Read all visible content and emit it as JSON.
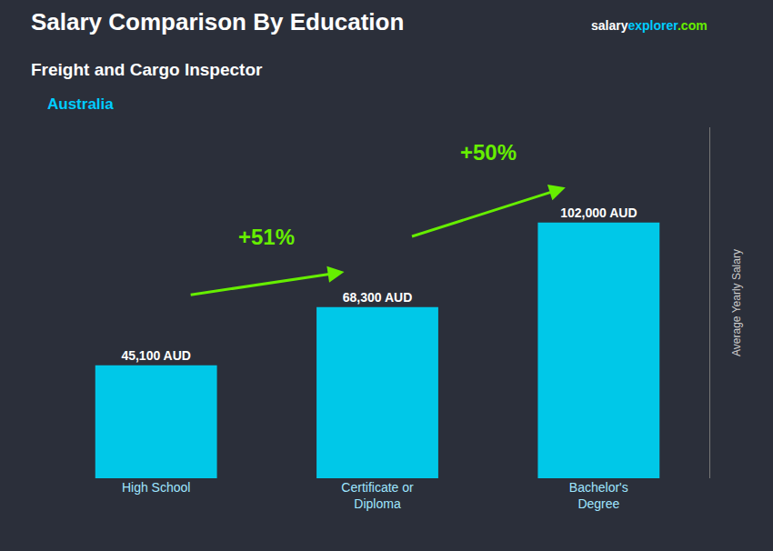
{
  "chart_data": {
    "type": "bar",
    "title": "Salary Comparison By Education",
    "subtitle": "Freight and Cargo Inspector",
    "ylabel": "Average Yearly Salary",
    "categories": [
      "High School",
      "Certificate or\nDiploma",
      "Bachelor's\nDegree"
    ],
    "values": [
      45100,
      68300,
      102000
    ],
    "value_labels": [
      "45,100 AUD",
      "68,300 AUD",
      "102,000 AUD"
    ],
    "data_labels": true,
    "color": "#00c8e8",
    "ylim": [
      0,
      140000
    ],
    "tick_labels": "x",
    "grid": false,
    "annotations": [
      {
        "text": "Australia",
        "color": "#00ccff"
      },
      {
        "text": [
          "salary",
          "explorer",
          ".com"
        ],
        "colors": [
          "#ffffff",
          "#00ccff",
          "#66ee00"
        ]
      },
      {
        "text": "+51%",
        "color": "#66ee00",
        "from": "High School",
        "to": "Certificate or\nDiploma"
      },
      {
        "text": "+50%",
        "color": "#66ee00",
        "from": "Certificate or\nDiploma",
        "to": "Bachelor's\nDegree"
      }
    ]
  }
}
